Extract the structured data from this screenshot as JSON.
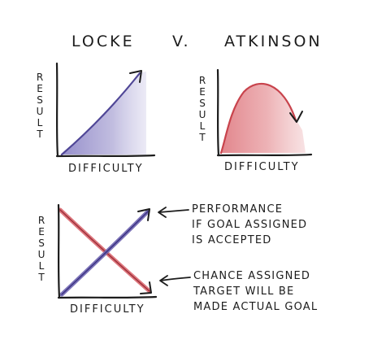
{
  "title": {
    "left": "LOCKE",
    "middle": "V.",
    "right": "ATKINSON"
  },
  "panels": {
    "locke": {
      "x_label": "DIFFICULTY",
      "y_label": "RESULT"
    },
    "atkinson": {
      "x_label": "DIFFICULTY",
      "y_label": "RESULT"
    },
    "combined": {
      "x_label": "DIFFICULTY",
      "y_label": "RESULT"
    }
  },
  "annotations": {
    "performance": "PERFORMANCE\nIF GOAL ASSIGNED\nIS ACCEPTED",
    "chance": "CHANCE ASSIGNED\nTARGET WILL BE\nMADE ACTUAL GOAL"
  },
  "colors": {
    "ink": "#1c1c1c",
    "purple": "#6e64b0",
    "purple_fill": "#b2aed9",
    "red": "#d9676f",
    "red_fill": "#eba3a6"
  }
}
